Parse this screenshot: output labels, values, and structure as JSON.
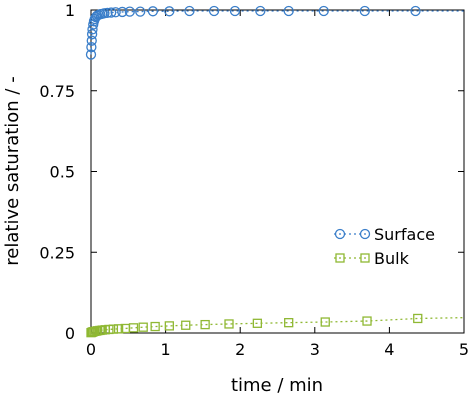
{
  "chart_data": {
    "type": "scatter",
    "xlabel": "time / min",
    "ylabel": "relative saturation / -",
    "xlim": [
      0,
      5
    ],
    "ylim": [
      0,
      1
    ],
    "x_ticks": [
      "0",
      "1",
      "2",
      "3",
      "4",
      "5"
    ],
    "y_ticks": [
      "0",
      "0.25",
      "0.5",
      "0.75",
      "1"
    ],
    "legend_position": "middle-right",
    "grid": false,
    "series": [
      {
        "name": "Surface",
        "color": "#3a7ec9",
        "marker": "circle",
        "line": "dotted",
        "x": [
          0.0,
          0.005,
          0.01,
          0.015,
          0.02,
          0.03,
          0.04,
          0.05,
          0.065,
          0.08,
          0.1,
          0.125,
          0.15,
          0.18,
          0.22,
          0.27,
          0.33,
          0.42,
          0.52,
          0.66,
          0.83,
          1.05,
          1.32,
          1.65,
          1.93,
          2.27,
          2.65,
          3.12,
          3.67,
          4.35
        ],
        "y": [
          0.862,
          0.885,
          0.905,
          0.925,
          0.94,
          0.955,
          0.965,
          0.972,
          0.978,
          0.982,
          0.985,
          0.987,
          0.988,
          0.99,
          0.991,
          0.992,
          0.993,
          0.994,
          0.995,
          0.995,
          0.996,
          0.996,
          0.997,
          0.997,
          0.997,
          0.997,
          0.997,
          0.997,
          0.997,
          0.997
        ]
      },
      {
        "name": "Bulk",
        "color": "#8fb833",
        "marker": "square",
        "line": "dotted",
        "x": [
          0.0,
          0.01,
          0.02,
          0.03,
          0.05,
          0.07,
          0.09,
          0.12,
          0.15,
          0.19,
          0.24,
          0.3,
          0.37,
          0.46,
          0.57,
          0.7,
          0.86,
          1.05,
          1.27,
          1.53,
          1.85,
          2.23,
          2.65,
          3.14,
          3.7,
          4.38
        ],
        "y": [
          0.001,
          0.002,
          0.003,
          0.004,
          0.005,
          0.006,
          0.007,
          0.008,
          0.009,
          0.01,
          0.011,
          0.012,
          0.013,
          0.014,
          0.016,
          0.018,
          0.02,
          0.022,
          0.024,
          0.026,
          0.028,
          0.03,
          0.032,
          0.034,
          0.037,
          0.045
        ]
      }
    ]
  }
}
